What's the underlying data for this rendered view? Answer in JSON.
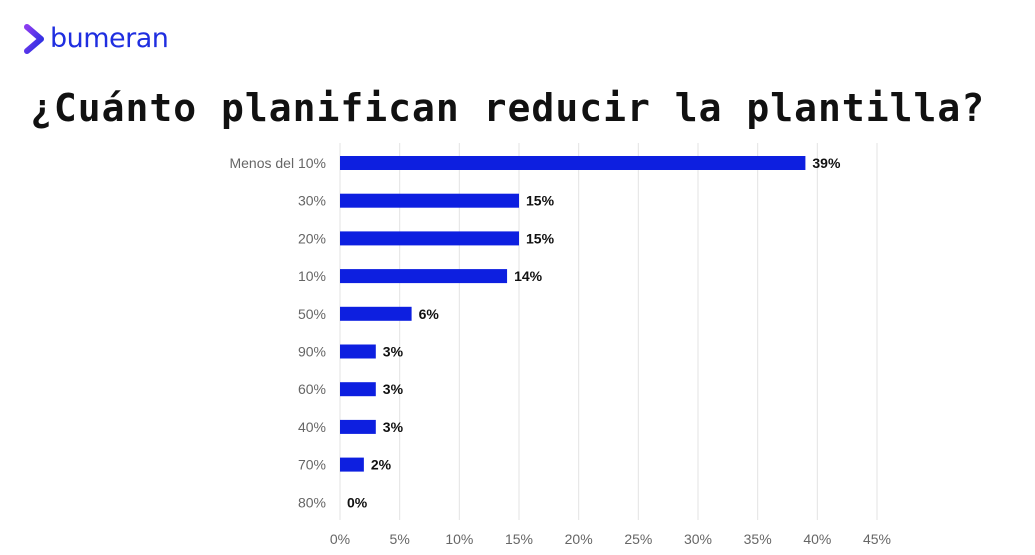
{
  "brand": {
    "name": "bumeran",
    "color": "#1f2ee0",
    "accent": "#7a3cf0"
  },
  "page": {
    "title": "¿Cuánto planifican reducir la plantilla?"
  },
  "chart_data": {
    "type": "bar",
    "orientation": "horizontal",
    "title": "",
    "xlabel": "",
    "ylabel": "",
    "categories": [
      "Menos del 10%",
      "30%",
      "20%",
      "10%",
      "50%",
      "90%",
      "60%",
      "40%",
      "70%",
      "80%"
    ],
    "values": [
      39,
      15,
      15,
      14,
      6,
      3,
      3,
      3,
      2,
      0
    ],
    "value_labels": [
      "39%",
      "15%",
      "15%",
      "14%",
      "6%",
      "3%",
      "3%",
      "3%",
      "2%",
      "0%"
    ],
    "xlim": [
      0,
      45
    ],
    "x_ticks": [
      0,
      5,
      10,
      15,
      20,
      25,
      30,
      35,
      40,
      45
    ],
    "x_tick_labels": [
      "0%",
      "5%",
      "10%",
      "15%",
      "20%",
      "25%",
      "30%",
      "35%",
      "40%",
      "45%"
    ],
    "grid": true,
    "legend": "none",
    "bar_color": "#0d1fe0",
    "grid_color": "#e3e3e3"
  }
}
